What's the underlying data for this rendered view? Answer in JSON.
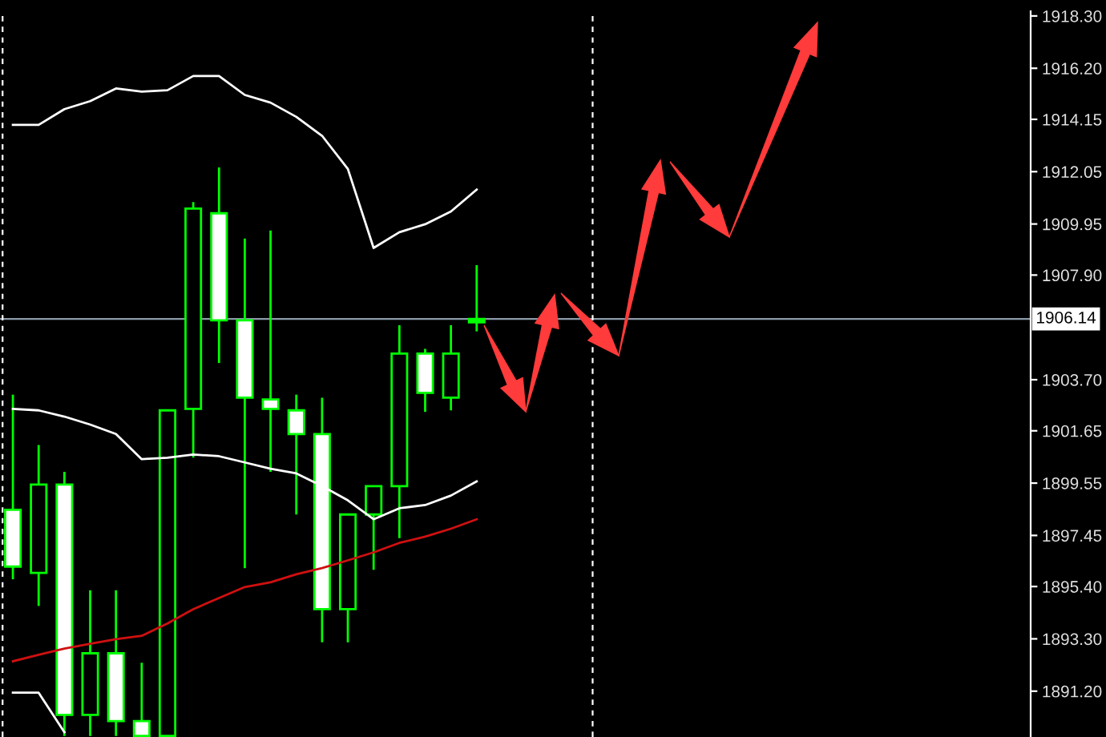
{
  "chart_data": {
    "type": "candlestick",
    "categories": [
      null,
      null,
      null,
      null,
      null,
      null,
      null,
      null,
      null,
      null,
      null,
      null,
      null,
      null,
      null,
      null,
      null,
      null,
      null,
      null,
      null,
      null,
      null,
      null,
      null,
      null,
      null,
      null,
      null,
      null,
      null,
      null,
      null,
      null,
      null,
      null,
      null,
      null,
      null,
      null
    ],
    "ohlc": [
      [
        1898.48,
        1903.1,
        1895.69,
        1896.2
      ],
      [
        1895.95,
        1901.08,
        1894.62,
        1899.49
      ],
      [
        1899.49,
        1900.0,
        1889.4,
        1890.25
      ],
      [
        1890.25,
        1895.25,
        1889.4,
        1892.72
      ],
      [
        1892.72,
        1895.25,
        1889.4,
        1890.0
      ],
      [
        1890.0,
        1892.34,
        1889.4,
        1889.4
      ],
      [
        1889.4,
        1902.47,
        1889.4,
        1902.47
      ],
      [
        1902.53,
        1910.83,
        1900.57,
        1910.57
      ],
      [
        1910.38,
        1912.22,
        1904.37,
        1906.08
      ],
      [
        1906.08,
        1909.37,
        1896.14,
        1902.98
      ],
      [
        1902.91,
        1909.69,
        1900.0,
        1902.53
      ],
      [
        1902.47,
        1903.1,
        1898.29,
        1901.52
      ],
      [
        1901.52,
        1902.98,
        1893.16,
        1894.49
      ],
      [
        1894.49,
        1898.29,
        1893.16,
        1898.29
      ],
      [
        1898.29,
        1899.43,
        1896.07,
        1899.43
      ],
      [
        1899.43,
        1905.89,
        1897.34,
        1904.75
      ],
      [
        1904.75,
        1904.94,
        1902.41,
        1903.17
      ],
      [
        1902.98,
        1905.89,
        1902.47,
        1904.75
      ],
      [
        1906.0,
        1908.3,
        1905.64,
        1906.14
      ],
      null,
      null,
      null,
      null,
      null,
      null,
      null,
      null,
      null,
      null,
      null,
      null,
      null,
      null,
      null,
      null,
      null,
      null,
      null,
      null,
      null
    ],
    "color": "#00ff00",
    "colors": [
      "#ffffff",
      "#000000",
      "#ffffff",
      "#000000",
      "#ffffff",
      "#ffffff",
      "#000000",
      "#000000",
      "#ffffff",
      "#ffffff",
      "#ffffff",
      "#ffffff",
      "#ffffff",
      "#000000",
      "#000000",
      "#000000",
      "#ffffff",
      "#000000",
      "#00ff00",
      null,
      null,
      null,
      null,
      null,
      null,
      null,
      null,
      null,
      null,
      null,
      null,
      null,
      null,
      null,
      null,
      null,
      null,
      null,
      null,
      null
    ],
    "series": [
      {
        "type": "line",
        "color": "#ffffff",
        "values": [
          1913.93,
          1913.93,
          1914.56,
          1914.88,
          1915.39,
          1915.26,
          1915.32,
          1915.89,
          1915.89,
          1915.13,
          1914.82,
          1914.25,
          1913.49,
          1912.16,
          1908.99,
          1909.62,
          1909.94,
          1910.45,
          1911.33,
          null,
          null,
          null,
          null,
          null,
          null,
          null,
          null,
          null,
          null,
          null,
          null,
          null,
          null,
          null,
          null,
          null,
          null,
          null,
          null,
          null
        ]
      },
      {
        "type": "line",
        "color": "#ffffff",
        "values": [
          1902.53,
          1902.47,
          1902.22,
          1901.9,
          1901.52,
          1900.51,
          1900.57,
          1900.7,
          1900.63,
          1900.38,
          1900.13,
          1899.94,
          1899.43,
          1898.86,
          1898.1,
          1898.54,
          1898.67,
          1899.05,
          1899.62,
          null,
          null,
          null,
          null,
          null,
          null,
          null,
          null,
          null,
          null,
          null,
          null,
          null,
          null,
          null,
          null,
          null,
          null,
          null,
          null,
          null
        ]
      },
      {
        "type": "line",
        "color": "#ffffff",
        "values": [
          1891.14,
          1891.14,
          1889.55,
          null,
          null,
          null,
          null,
          null,
          null,
          null,
          null,
          null,
          null,
          null,
          null,
          null,
          null,
          null,
          null,
          null,
          null,
          null,
          null,
          null,
          null,
          null,
          null,
          null,
          null,
          null,
          null,
          null,
          null,
          null,
          null,
          null,
          null,
          null,
          null,
          null
        ]
      },
      {
        "type": "line",
        "color": "#d01010",
        "values": [
          1892.4,
          1892.66,
          1892.91,
          1893.1,
          1893.29,
          1893.42,
          1893.92,
          1894.49,
          1894.94,
          1895.38,
          1895.57,
          1895.89,
          1896.14,
          1896.45,
          1896.77,
          1897.15,
          1897.4,
          1897.72,
          1898.1,
          null,
          null,
          null,
          null,
          null,
          null,
          null,
          null,
          null,
          null,
          null,
          null,
          null,
          null,
          null,
          null,
          null,
          null,
          null,
          null,
          null
        ]
      }
    ],
    "ylim": [
      1889.36,
      1918.49
    ],
    "yticks": [
      {
        "value": 1918.3,
        "label": "1918.30"
      },
      {
        "value": 1916.2,
        "label": "1916.20"
      },
      {
        "value": 1914.15,
        "label": "1914.15"
      },
      {
        "value": 1912.05,
        "label": "1912.05"
      },
      {
        "value": 1909.95,
        "label": "1909.95"
      },
      {
        "value": 1907.9,
        "label": "1907.90"
      },
      {
        "value": 1903.7,
        "label": "1903.70"
      },
      {
        "value": 1901.65,
        "label": "1901.65"
      },
      {
        "value": 1899.55,
        "label": "1899.55"
      },
      {
        "value": 1897.45,
        "label": "1897.45"
      },
      {
        "value": 1895.4,
        "label": "1895.40"
      },
      {
        "value": 1893.3,
        "label": "1893.30"
      },
      {
        "value": 1891.2,
        "label": "1891.20"
      }
    ],
    "ref_lines": [
      {
        "axis": "y",
        "value": 1906.14,
        "label": "1906.14",
        "color": "#8a9aa8"
      }
    ],
    "tick_labels": "y"
  }
}
